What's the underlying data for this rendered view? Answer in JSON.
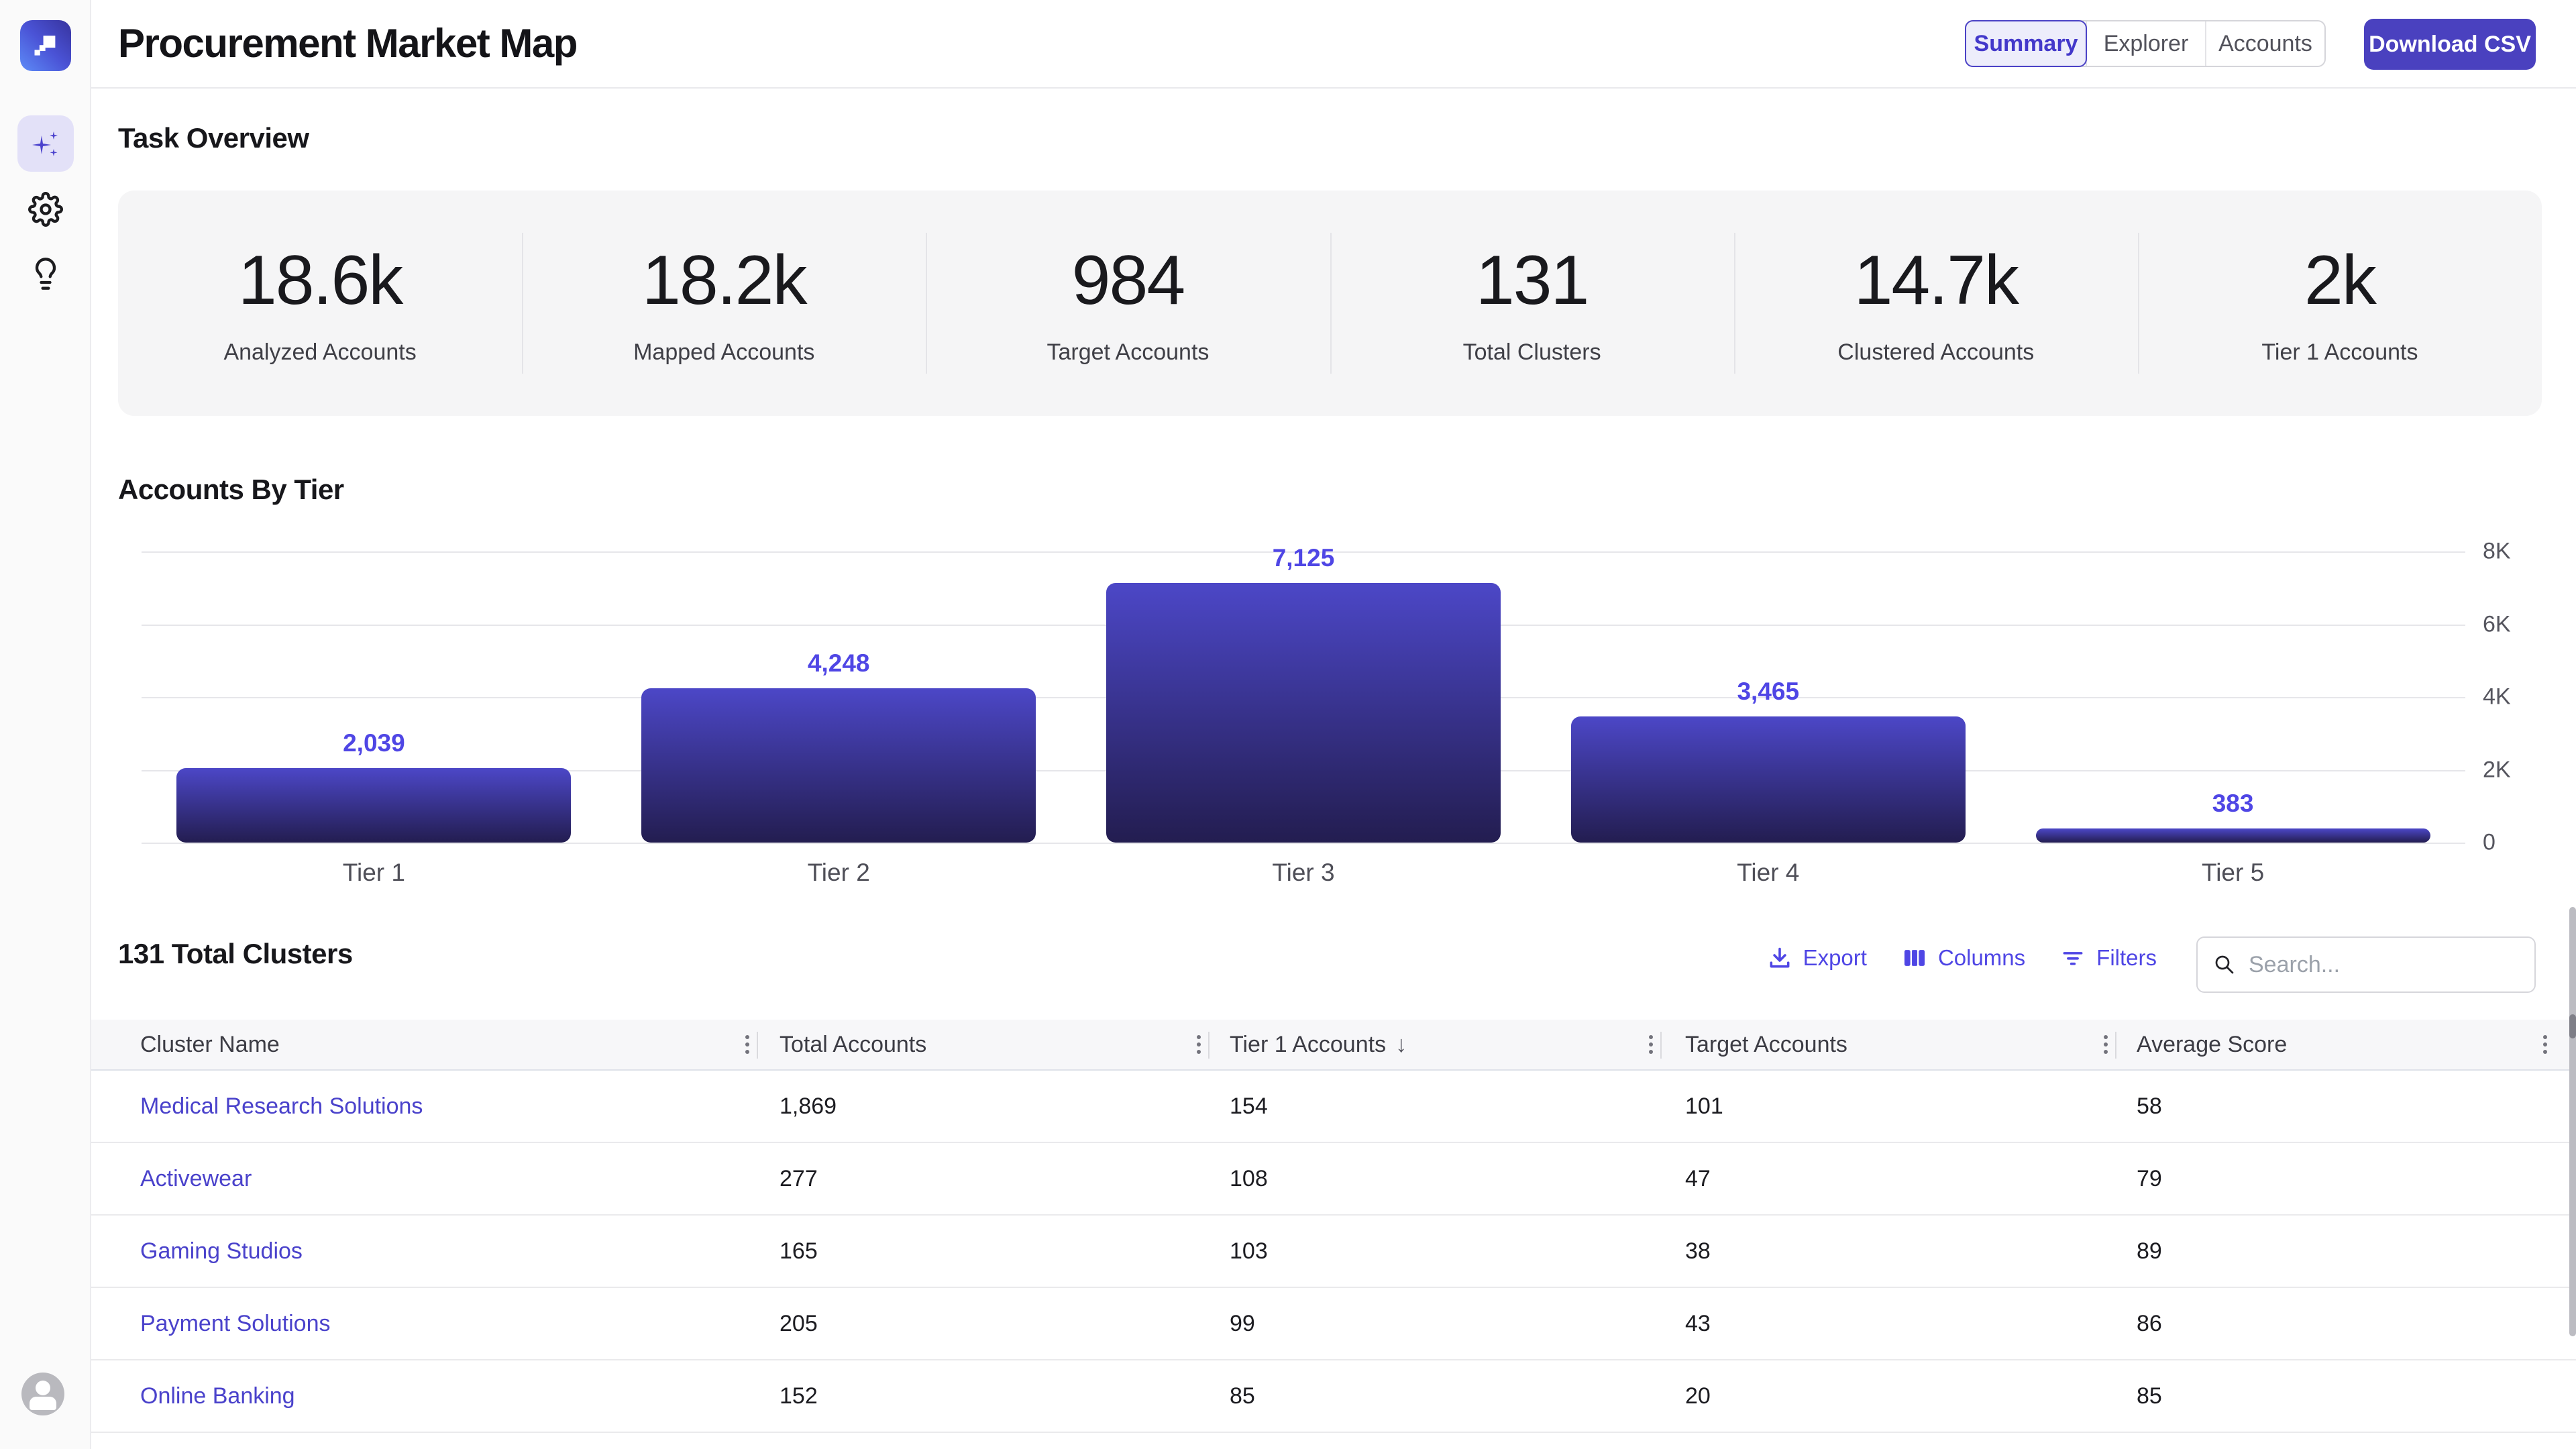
{
  "colors": {
    "accent": "#4f46e5",
    "brand_button": "#4a41bf",
    "link": "#4a42cb",
    "active_tab_bg": "#ededfb",
    "bar_gradient_top": "#4c47c7",
    "bar_gradient_bottom": "#231d50"
  },
  "sidebar": {
    "nav_items": [
      {
        "icon": "sparkles-icon",
        "active": true
      },
      {
        "icon": "gear-icon",
        "active": false
      },
      {
        "icon": "lightbulb-icon",
        "active": false
      }
    ]
  },
  "header": {
    "title": "Procurement Market Map",
    "tabs": [
      {
        "label": "Summary",
        "active": true
      },
      {
        "label": "Explorer",
        "active": false
      },
      {
        "label": "Accounts",
        "active": false
      }
    ],
    "download_button_label": "Download CSV"
  },
  "task_overview": {
    "heading": "Task Overview",
    "stats": [
      {
        "value": "18.6k",
        "label": "Analyzed Accounts"
      },
      {
        "value": "18.2k",
        "label": "Mapped Accounts"
      },
      {
        "value": "984",
        "label": "Target Accounts"
      },
      {
        "value": "131",
        "label": "Total Clusters"
      },
      {
        "value": "14.7k",
        "label": "Clustered Accounts"
      },
      {
        "value": "2k",
        "label": "Tier 1 Accounts"
      }
    ]
  },
  "chart_data": {
    "type": "bar",
    "title": "Accounts By Tier",
    "categories": [
      "Tier 1",
      "Tier 2",
      "Tier 3",
      "Tier 4",
      "Tier 5"
    ],
    "values": [
      2039,
      4248,
      7125,
      3465,
      383
    ],
    "value_labels": [
      "2,039",
      "4,248",
      "7,125",
      "3,465",
      "383"
    ],
    "xlabel": "",
    "ylabel": "",
    "ylim": [
      0,
      8000
    ],
    "yticks_top_to_bottom": [
      "8K",
      "6K",
      "4K",
      "2K",
      "0"
    ],
    "grid": true,
    "yaxis": "right",
    "legend": false
  },
  "clusters": {
    "heading": "131 Total Clusters",
    "toolbar": {
      "export_label": "Export",
      "columns_label": "Columns",
      "filters_label": "Filters"
    },
    "search": {
      "placeholder": "Search...",
      "value": ""
    },
    "table": {
      "columns": [
        {
          "label": "Cluster Name"
        },
        {
          "label": "Total Accounts"
        },
        {
          "label": "Tier 1 Accounts",
          "sorted": "desc"
        },
        {
          "label": "Target Accounts"
        },
        {
          "label": "Average Score"
        }
      ],
      "rows": [
        {
          "cluster_name": "Medical Research Solutions",
          "total_accounts": "1,869",
          "tier1_accounts": "154",
          "target_accounts": "101",
          "average_score": "58"
        },
        {
          "cluster_name": "Activewear",
          "total_accounts": "277",
          "tier1_accounts": "108",
          "target_accounts": "47",
          "average_score": "79"
        },
        {
          "cluster_name": "Gaming Studios",
          "total_accounts": "165",
          "tier1_accounts": "103",
          "target_accounts": "38",
          "average_score": "89"
        },
        {
          "cluster_name": "Payment Solutions",
          "total_accounts": "205",
          "tier1_accounts": "99",
          "target_accounts": "43",
          "average_score": "86"
        },
        {
          "cluster_name": "Online Banking",
          "total_accounts": "152",
          "tier1_accounts": "85",
          "target_accounts": "20",
          "average_score": "85"
        }
      ]
    }
  }
}
